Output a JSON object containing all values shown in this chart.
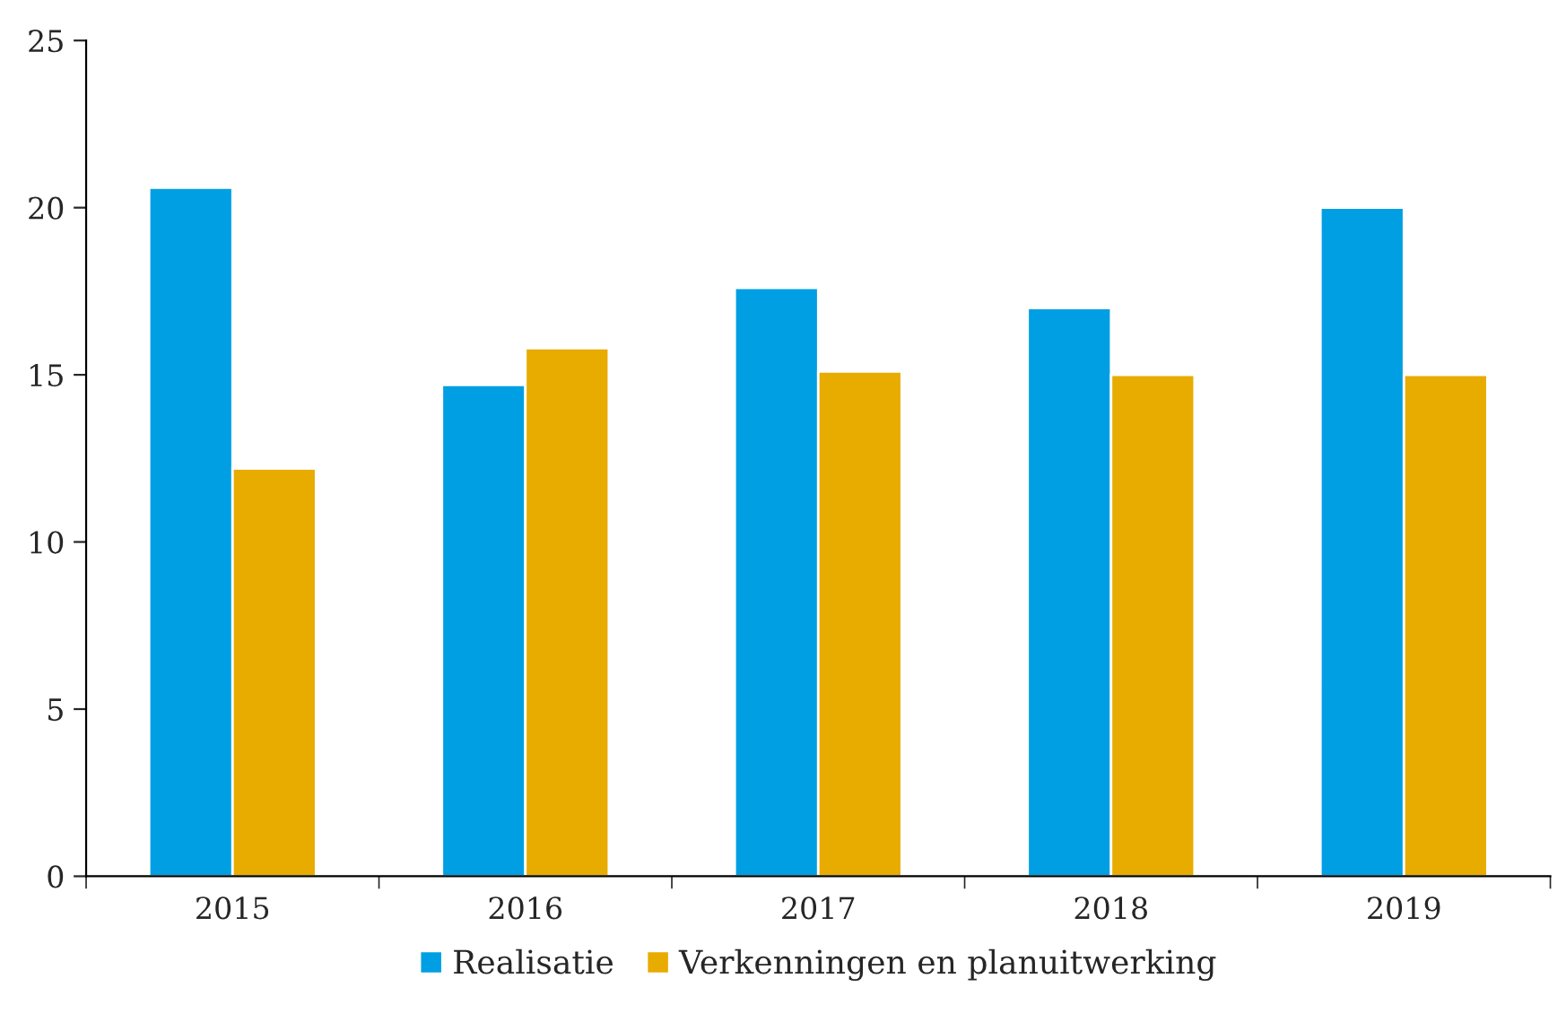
{
  "chart_data": {
    "type": "bar",
    "categories": [
      "2015",
      "2016",
      "2017",
      "2018",
      "2019"
    ],
    "series": [
      {
        "name": "Realisatie",
        "color": "#009fe3",
        "values": [
          20.6,
          14.7,
          17.6,
          17.0,
          20.0
        ]
      },
      {
        "name": "Verkenningen en planuitwerking",
        "color": "#e8ab00",
        "values": [
          12.2,
          15.8,
          15.1,
          15.0,
          15.0
        ]
      }
    ],
    "ylim": [
      0,
      25
    ],
    "yticks": [
      0,
      5,
      10,
      15,
      20,
      25
    ],
    "grid": false,
    "legend": "bottom"
  }
}
